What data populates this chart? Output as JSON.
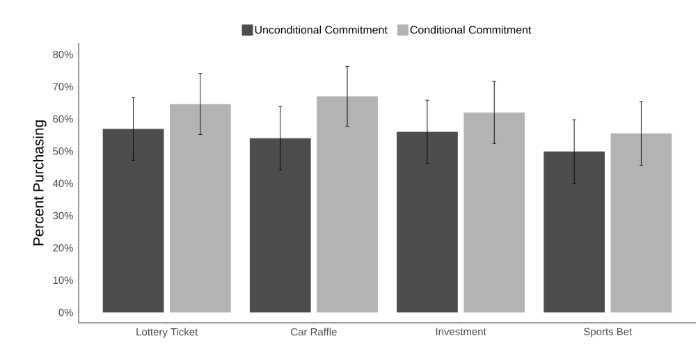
{
  "chart_data": {
    "type": "bar",
    "ylabel": "Percent Purchasing",
    "categories": [
      "Lottery Ticket",
      "Car Raffle",
      "Investment",
      "Sports Bet"
    ],
    "series": [
      {
        "name": "Unconditional Commitment",
        "color": "#4d4d4d",
        "values": [
          56.9,
          54.0,
          56.0,
          49.9
        ],
        "errors": [
          9.7,
          9.8,
          9.8,
          9.85
        ]
      },
      {
        "name": "Conditional Commitment",
        "color": "#b3b3b3",
        "values": [
          64.6,
          67.0,
          62.0,
          55.5
        ],
        "errors": [
          9.45,
          9.3,
          9.6,
          9.85
        ]
      }
    ],
    "ylim": [
      -3.2,
      83.5
    ],
    "yticks": [
      {
        "value": 0,
        "label": "0%"
      },
      {
        "value": 10,
        "label": "10%"
      },
      {
        "value": 20,
        "label": "20%"
      },
      {
        "value": 30,
        "label": "30%"
      },
      {
        "value": 40,
        "label": "40%"
      },
      {
        "value": 50,
        "label": "50%"
      },
      {
        "value": 60,
        "label": "60%"
      },
      {
        "value": 70,
        "label": "70%"
      },
      {
        "value": 80,
        "label": "80%"
      }
    ],
    "legend": "top",
    "grid": false
  }
}
